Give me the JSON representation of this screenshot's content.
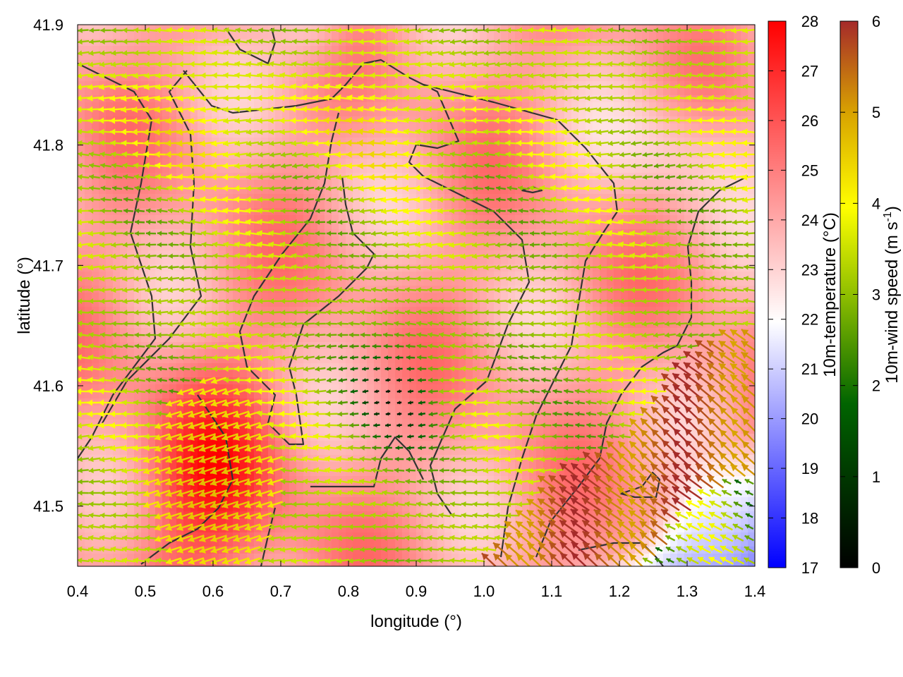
{
  "chart_data": {
    "type": "heatmap",
    "xlabel": "longitude (°)",
    "ylabel": "latitude (°)",
    "xlim": [
      0.4,
      1.4
    ],
    "ylim": [
      41.45,
      41.9
    ],
    "x_ticks": [
      "0.4",
      "0.5",
      "0.6",
      "0.7",
      "0.8",
      "0.9",
      "1.0",
      "1.1",
      "1.2",
      "1.3",
      "1.4"
    ],
    "y_ticks": [
      "41.5",
      "41.6",
      "41.7",
      "41.8",
      "41.9"
    ],
    "x_tick_values": [
      0.4,
      0.5,
      0.6,
      0.7,
      0.8,
      0.9,
      1.0,
      1.1,
      1.2,
      1.3,
      1.4
    ],
    "y_tick_values": [
      41.5,
      41.6,
      41.7,
      41.8,
      41.9
    ],
    "grid": false,
    "temperature_colorbar": {
      "label": "10m-temperature (°C)",
      "range": [
        17,
        28
      ],
      "ticks": [
        "17",
        "18",
        "19",
        "20",
        "21",
        "22",
        "23",
        "24",
        "25",
        "26",
        "27",
        "28"
      ],
      "colors": [
        "#0000ff",
        "#ffffff",
        "#ff0000"
      ]
    },
    "wind_colorbar": {
      "label_main": "10m-wind speed (m s",
      "label_sup": "-1",
      "label_end": ")",
      "range": [
        0,
        6
      ],
      "ticks": [
        "0",
        "1",
        "2",
        "3",
        "4",
        "5",
        "6"
      ],
      "colors": [
        "#000000",
        "#006400",
        "#8fbf00",
        "#ffff00",
        "#d9a400",
        "#a52a2a"
      ]
    },
    "temperature_field_notes": "warm (24-27 °C) over most land west of 1.15°; cold (18-21 °C) sea in the southeast corner",
    "wind_field_notes": "predominantly easterly 2-4 m/s; strong 5-6 m/s north-westward flow from the southeast coast"
  }
}
